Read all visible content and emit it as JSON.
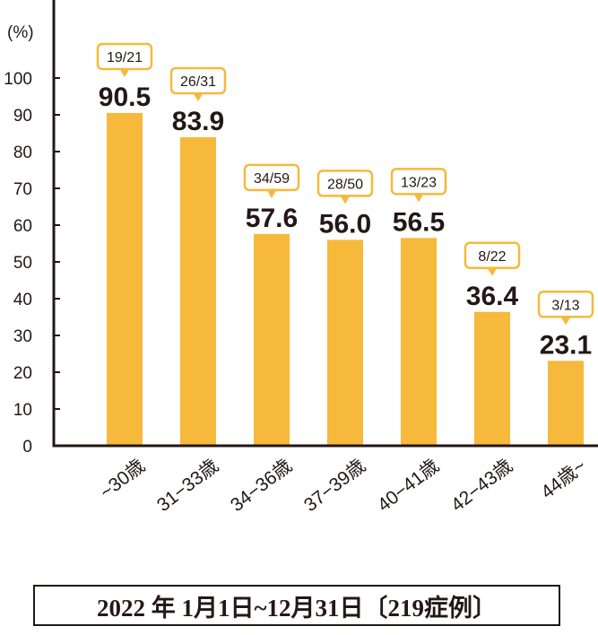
{
  "chart_data": {
    "type": "bar",
    "unit_label": "(%)",
    "categories": [
      "~30歳",
      "31−33歳",
      "34−36歳",
      "37−39歳",
      "40−41歳",
      "42−43歳",
      "44歳~"
    ],
    "values": [
      90.5,
      83.9,
      57.6,
      56.0,
      56.5,
      36.4,
      23.1
    ],
    "value_labels": [
      "90.5",
      "83.9",
      "57.6",
      "56.0",
      "56.5",
      "36.4",
      "23.1"
    ],
    "ratio_labels": [
      "19/21",
      "26/31",
      "34/59",
      "28/50",
      "13/23",
      "8/22",
      "3/13"
    ],
    "ylim": [
      0,
      100
    ],
    "yticks": [
      0,
      10,
      20,
      30,
      40,
      50,
      60,
      70,
      80,
      90,
      100
    ],
    "grid": false,
    "bar_color": "#f6b93b",
    "callout_border_color": "#f6b93b"
  },
  "caption": "2022 年 1月1日~12月31日〔219症例〕"
}
